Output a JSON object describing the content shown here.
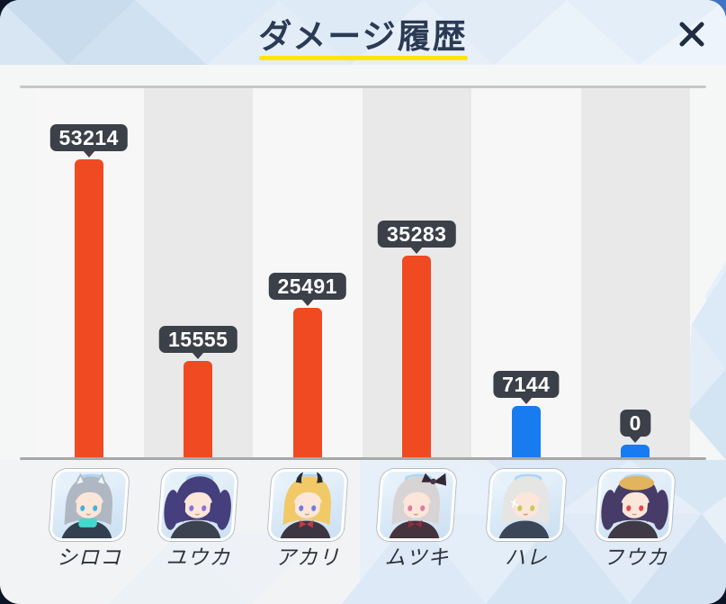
{
  "window": {
    "title": "ダメージ履歴",
    "close_icon": "x-close"
  },
  "colors": {
    "accent_orange": "#F04A22",
    "accent_blue": "#187BF0",
    "badge_bg": "#3B4049",
    "badge_text": "#FFFFFF",
    "title_text": "#2B3A55",
    "underline_yellow": "#FFE600",
    "panel_bg": "#F5F6F6",
    "stripe_gray": "#E9E9E9",
    "stripe_light": "#F7F7F7",
    "baseline_gray": "#A8A8A8",
    "divider_gray": "#C7C7C7",
    "outside_dark": "#0C1526"
  },
  "chart_data": {
    "type": "bar",
    "title": "ダメージ履歴",
    "categories": [
      "シロコ",
      "ユウカ",
      "アカリ",
      "ムツキ",
      "ハレ",
      "フウカ"
    ],
    "values": [
      53214,
      15555,
      25491,
      35283,
      7144,
      0
    ],
    "value_labels": [
      "53214",
      "15555",
      "25491",
      "35283",
      "7144",
      "0"
    ],
    "bar_colors": [
      "#F04A22",
      "#F04A22",
      "#F04A22",
      "#F04A22",
      "#187BF0",
      "#187BF0"
    ],
    "ylim": [
      0,
      53214
    ],
    "xlabel": "",
    "ylabel": "",
    "grid": false,
    "legend": false,
    "orientation": "vertical"
  },
  "characters": [
    {
      "id": "shiroko",
      "name": "シロコ",
      "avatar": {
        "hair": "#AFB8C2",
        "skin": "#FBE6D9",
        "eyes": "#3FB4DC",
        "outfit": "#33404F",
        "accent": "#43D8CE",
        "halo": "#A9D2F2",
        "extras": [
          "wolf-ears",
          "scarf"
        ]
      }
    },
    {
      "id": "yuuka",
      "name": "ユウカ",
      "avatar": {
        "hair": "#453F7D",
        "skin": "#FBE6D9",
        "eyes": "#8672DE",
        "outfit": "#3C4250",
        "accent": "#4C7FE0",
        "halo": "#A9D2F2",
        "extras": [
          "twintails"
        ]
      }
    },
    {
      "id": "akari",
      "name": "アカリ",
      "avatar": {
        "hair": "#F1C967",
        "skin": "#FBE6D9",
        "eyes": "#6F7DE2",
        "outfit": "#3B3642",
        "accent": "#C03A44",
        "halo": "#A9D2F2",
        "extras": [
          "horns",
          "ribbon"
        ]
      }
    },
    {
      "id": "mutsuki",
      "name": "ムツキ",
      "avatar": {
        "hair": "#D8D3D5",
        "skin": "#FBE6D9",
        "eyes": "#DF7BA2",
        "outfit": "#45333D",
        "accent": "#8C2F3D",
        "halo": "#A9D2F2",
        "extras": [
          "side-bow",
          "ribbon"
        ]
      }
    },
    {
      "id": "hare",
      "name": "ハレ",
      "avatar": {
        "hair": "#E5E5E3",
        "skin": "#FBE6D9",
        "eyes": "#C2CB5C",
        "outfit": "#3B4659",
        "accent": "#5A6B85",
        "halo": "#A9D2F2",
        "extras": [
          "hairpin"
        ]
      }
    },
    {
      "id": "fuuka",
      "name": "フウカ",
      "avatar": {
        "hair": "#473C68",
        "skin": "#FBE6D9",
        "eyes": "#E04A4A",
        "outfit": "#3F3A45",
        "accent": "#B8323C",
        "halo": "#A9D2F2",
        "hat": "#E2B45E",
        "extras": [
          "twintails",
          "beret"
        ]
      }
    }
  ]
}
